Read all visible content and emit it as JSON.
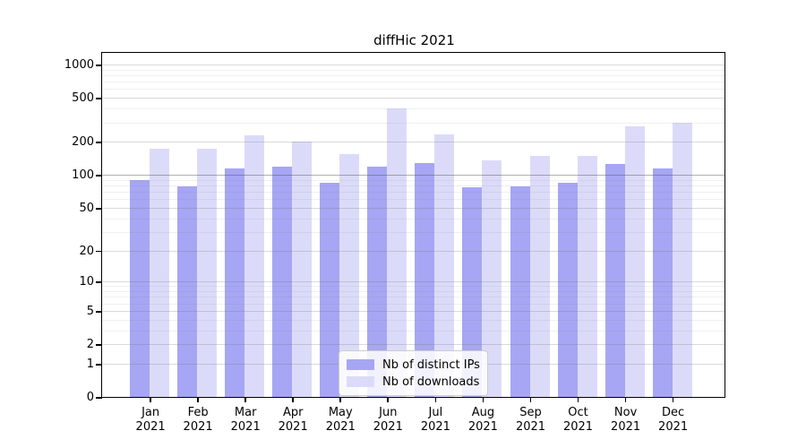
{
  "title": "diffHic 2021",
  "chart_data": {
    "type": "bar",
    "title": "diffHic 2021",
    "y_scale": "log10(1+x)",
    "categories": [
      "Jan",
      "Feb",
      "Mar",
      "Apr",
      "May",
      "Jun",
      "Jul",
      "Aug",
      "Sep",
      "Oct",
      "Nov",
      "Dec"
    ],
    "category_year": "2021",
    "series": [
      {
        "name": "Nb of distinct IPs",
        "color": "#a6a6f4",
        "values": [
          90,
          79,
          114,
          118,
          85,
          120,
          129,
          77,
          78,
          85,
          126,
          115
        ]
      },
      {
        "name": "Nb of downloads",
        "color": "#dbdbf9",
        "values": [
          174,
          174,
          230,
          201,
          155,
          400,
          233,
          135,
          148,
          149,
          277,
          300
        ]
      }
    ],
    "yticks": [
      0,
      1,
      2,
      5,
      10,
      20,
      50,
      100,
      200,
      500,
      1000
    ],
    "minor_yticks": [
      3,
      4,
      6,
      7,
      8,
      9,
      30,
      40,
      60,
      70,
      80,
      90,
      300,
      400,
      600,
      700,
      800,
      900
    ],
    "ylim": [
      0,
      1275
    ],
    "grid": true,
    "emphasized_gridline": 100,
    "legend_position": "lower center"
  },
  "colors": {
    "bar_distinct_ips": "#a6a6f4",
    "bar_downloads": "#dbdbf9",
    "grid_major": "rgba(120,120,120,0.28)",
    "grid_minor": "rgba(128,128,128,0.12)",
    "grid_emphasis": "rgba(80,80,80,0.45)",
    "spine": "#000000"
  }
}
